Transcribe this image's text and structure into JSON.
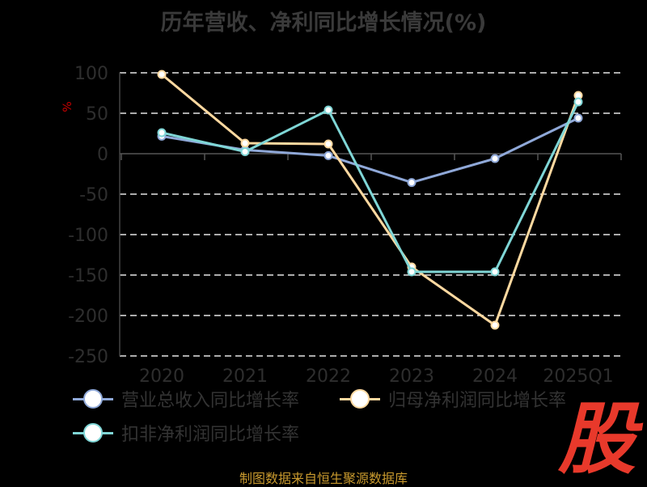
{
  "chart_data": {
    "type": "line",
    "title": "历年营收、净利同比增长情况(%)",
    "ylabel": "%",
    "categories": [
      "2020",
      "2021",
      "2022",
      "2023",
      "2024",
      "2025Q1"
    ],
    "ylim": [
      -250,
      100
    ],
    "yticks": [
      "100",
      "50",
      "0",
      "-50",
      "-100",
      "-150",
      "-200",
      "-250"
    ],
    "grid": true,
    "legend_position": "bottom",
    "series": [
      {
        "name": "营业总收入同比增长率",
        "color": "#8fa8d8",
        "values": [
          21.6,
          4.6,
          -2.4,
          -35.6,
          -6.0,
          44.0
        ]
      },
      {
        "name": "归母净利润同比增长率",
        "color": "#ffd9a0",
        "values": [
          98.0,
          13.0,
          12.0,
          -140.0,
          -212.0,
          72.0
        ]
      },
      {
        "name": "扣非净利润同比增长率",
        "color": "#7fd6d6",
        "values": [
          26.0,
          2.5,
          54.0,
          -146.0,
          -146.0,
          64.0
        ]
      }
    ]
  },
  "source_note": "制图数据来自恒生聚源数据库",
  "logo_text": "股"
}
